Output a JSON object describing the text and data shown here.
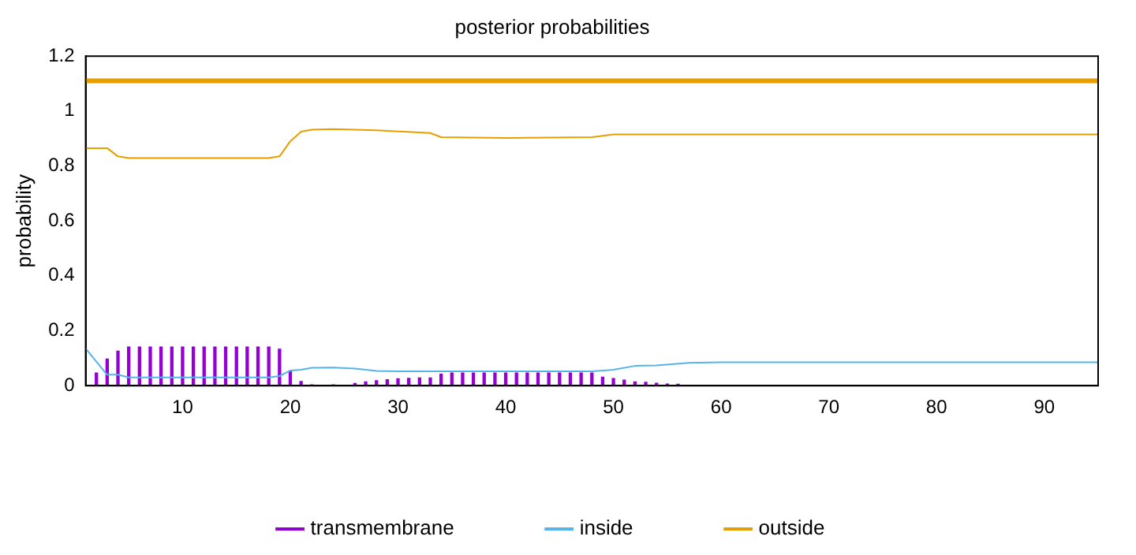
{
  "chart_data": {
    "type": "line",
    "title": "posterior probabilities",
    "ylabel": "probability",
    "xlim": [
      1,
      95
    ],
    "xticks": [
      10,
      20,
      30,
      40,
      50,
      60,
      70,
      80,
      90
    ],
    "ylim": [
      0,
      1.2
    ],
    "yticks": [
      0,
      0.2,
      0.4,
      0.6,
      0.8,
      1,
      1.2
    ],
    "grid": false,
    "legend": "bottom",
    "marker": "none",
    "line_style": "solid",
    "ref_lines": [
      {
        "axis": "y",
        "value": 1.11,
        "color": "#e69f00"
      }
    ],
    "series": [
      {
        "name": "transmembrane",
        "type": "bar",
        "color": "#9400d3",
        "x": [
          1,
          2,
          3,
          4,
          5,
          6,
          7,
          8,
          9,
          10,
          11,
          12,
          13,
          14,
          15,
          16,
          17,
          18,
          19,
          20,
          21,
          22,
          23,
          24,
          25,
          26,
          27,
          28,
          29,
          30,
          31,
          32,
          33,
          34,
          35,
          36,
          37,
          38,
          39,
          40,
          41,
          42,
          43,
          44,
          45,
          46,
          47,
          48,
          49,
          50,
          51,
          52,
          53,
          54,
          55,
          56
        ],
        "values": [
          0,
          0.046,
          0.097,
          0.126,
          0.141,
          0.141,
          0.141,
          0.141,
          0.141,
          0.141,
          0.141,
          0.141,
          0.141,
          0.141,
          0.141,
          0.141,
          0.141,
          0.141,
          0.133,
          0.054,
          0.015,
          0.003,
          null,
          0.003,
          null,
          0.008,
          0.014,
          0.018,
          0.022,
          0.025,
          0.027,
          0.028,
          0.028,
          0.042,
          0.046,
          0.046,
          0.046,
          0.046,
          0.046,
          0.046,
          0.046,
          0.046,
          0.046,
          0.046,
          0.046,
          0.046,
          0.046,
          0.046,
          0.031,
          0.026,
          0.02,
          0.014,
          0.012,
          0.009,
          0.006,
          0.005
        ]
      },
      {
        "name": "inside",
        "color": "#56b4e9",
        "x": [
          1,
          3,
          4,
          5,
          18,
          19,
          20,
          21,
          22,
          24,
          26,
          28,
          30,
          48,
          50,
          52,
          54,
          57,
          60,
          95
        ],
        "values": [
          0.135,
          0.04,
          0.04,
          0.03,
          0.03,
          0.035,
          0.055,
          0.058,
          0.065,
          0.066,
          0.062,
          0.054,
          0.052,
          0.052,
          0.058,
          0.072,
          0.074,
          0.083,
          0.085,
          0.085
        ]
      },
      {
        "name": "outside",
        "color": "#e69f00",
        "x": [
          1,
          3,
          4,
          5,
          18,
          19,
          20,
          21,
          22,
          24,
          28,
          33,
          34,
          40,
          48,
          50,
          95
        ],
        "values": [
          0.865,
          0.865,
          0.835,
          0.829,
          0.829,
          0.835,
          0.89,
          0.925,
          0.932,
          0.934,
          0.93,
          0.92,
          0.905,
          0.902,
          0.905,
          0.915,
          0.915
        ]
      }
    ]
  }
}
